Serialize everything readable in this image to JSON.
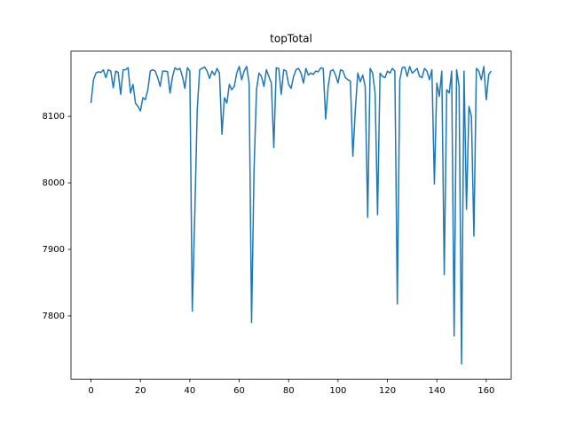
{
  "chart_data": {
    "type": "line",
    "title": "topTotal",
    "x": [
      0,
      1,
      2,
      3,
      4,
      5,
      6,
      7,
      8,
      9,
      10,
      11,
      12,
      13,
      14,
      15,
      16,
      17,
      18,
      19,
      20,
      21,
      22,
      23,
      24,
      25,
      26,
      27,
      28,
      29,
      30,
      31,
      32,
      33,
      34,
      35,
      36,
      37,
      38,
      39,
      40,
      41,
      42,
      43,
      44,
      45,
      46,
      47,
      48,
      49,
      50,
      51,
      52,
      53,
      54,
      55,
      56,
      57,
      58,
      59,
      60,
      61,
      62,
      63,
      64,
      65,
      66,
      67,
      68,
      69,
      70,
      71,
      72,
      73,
      74,
      75,
      76,
      77,
      78,
      79,
      80,
      81,
      82,
      83,
      84,
      85,
      86,
      87,
      88,
      89,
      90,
      91,
      92,
      93,
      94,
      95,
      96,
      97,
      98,
      99,
      100,
      101,
      102,
      103,
      104,
      105,
      106,
      107,
      108,
      109,
      110,
      111,
      112,
      113,
      114,
      115,
      116,
      117,
      118,
      119,
      120,
      121,
      122,
      123,
      124,
      125,
      126,
      127,
      128,
      129,
      130,
      131,
      132,
      133,
      134,
      135,
      136,
      137,
      138,
      139,
      140,
      141,
      142,
      143,
      144,
      145,
      146,
      147,
      148,
      149,
      150,
      151,
      152,
      153,
      154,
      155,
      156,
      157,
      158,
      159,
      160,
      161,
      162
    ],
    "values": [
      8120,
      8155,
      8165,
      8167,
      8166,
      8170,
      8158,
      8170,
      8168,
      8143,
      8168,
      8166,
      8133,
      8170,
      8170,
      8173,
      8135,
      8148,
      8120,
      8115,
      8108,
      8128,
      8125,
      8140,
      8168,
      8170,
      8168,
      8158,
      8145,
      8168,
      8168,
      8167,
      8135,
      8160,
      8173,
      8170,
      8172,
      8160,
      8142,
      8173,
      8168,
      7807,
      7950,
      8110,
      8170,
      8172,
      8174,
      8168,
      8157,
      8168,
      8162,
      8172,
      8165,
      8073,
      8128,
      8120,
      8148,
      8140,
      8145,
      8165,
      8175,
      8155,
      8168,
      8175,
      8150,
      7790,
      8020,
      8140,
      8165,
      8160,
      8145,
      8170,
      8160,
      8150,
      8053,
      8173,
      8172,
      8133,
      8170,
      8168,
      8148,
      8142,
      8160,
      8170,
      8172,
      8165,
      8150,
      8172,
      8162,
      8165,
      8163,
      8168,
      8167,
      8173,
      8172,
      8096,
      8145,
      8168,
      8170,
      8162,
      8150,
      8170,
      8168,
      8158,
      8155,
      8153,
      8040,
      8110,
      8165,
      8152,
      8162,
      8145,
      7948,
      8172,
      8165,
      8135,
      7952,
      8165,
      8160,
      8158,
      8168,
      8165,
      8172,
      8168,
      7818,
      8155,
      8173,
      8174,
      8160,
      8175,
      8165,
      8168,
      8172,
      8160,
      8158,
      8172,
      8168,
      8155,
      8170,
      7998,
      8150,
      8130,
      8168,
      7862,
      8140,
      8135,
      8168,
      7770,
      8170,
      8145,
      7728,
      8168,
      7960,
      8115,
      8100,
      7920,
      8172,
      8168,
      8155,
      8175,
      8125,
      8163,
      8168
    ],
    "color": "#1f77b4",
    "xlim": [
      -8.1,
      170.1
    ],
    "xticks": [
      0,
      20,
      40,
      60,
      80,
      100,
      120,
      140,
      160
    ],
    "ylim": [
      7705,
      8198
    ],
    "yticks": [
      7800,
      7900,
      8000,
      8100
    ]
  }
}
